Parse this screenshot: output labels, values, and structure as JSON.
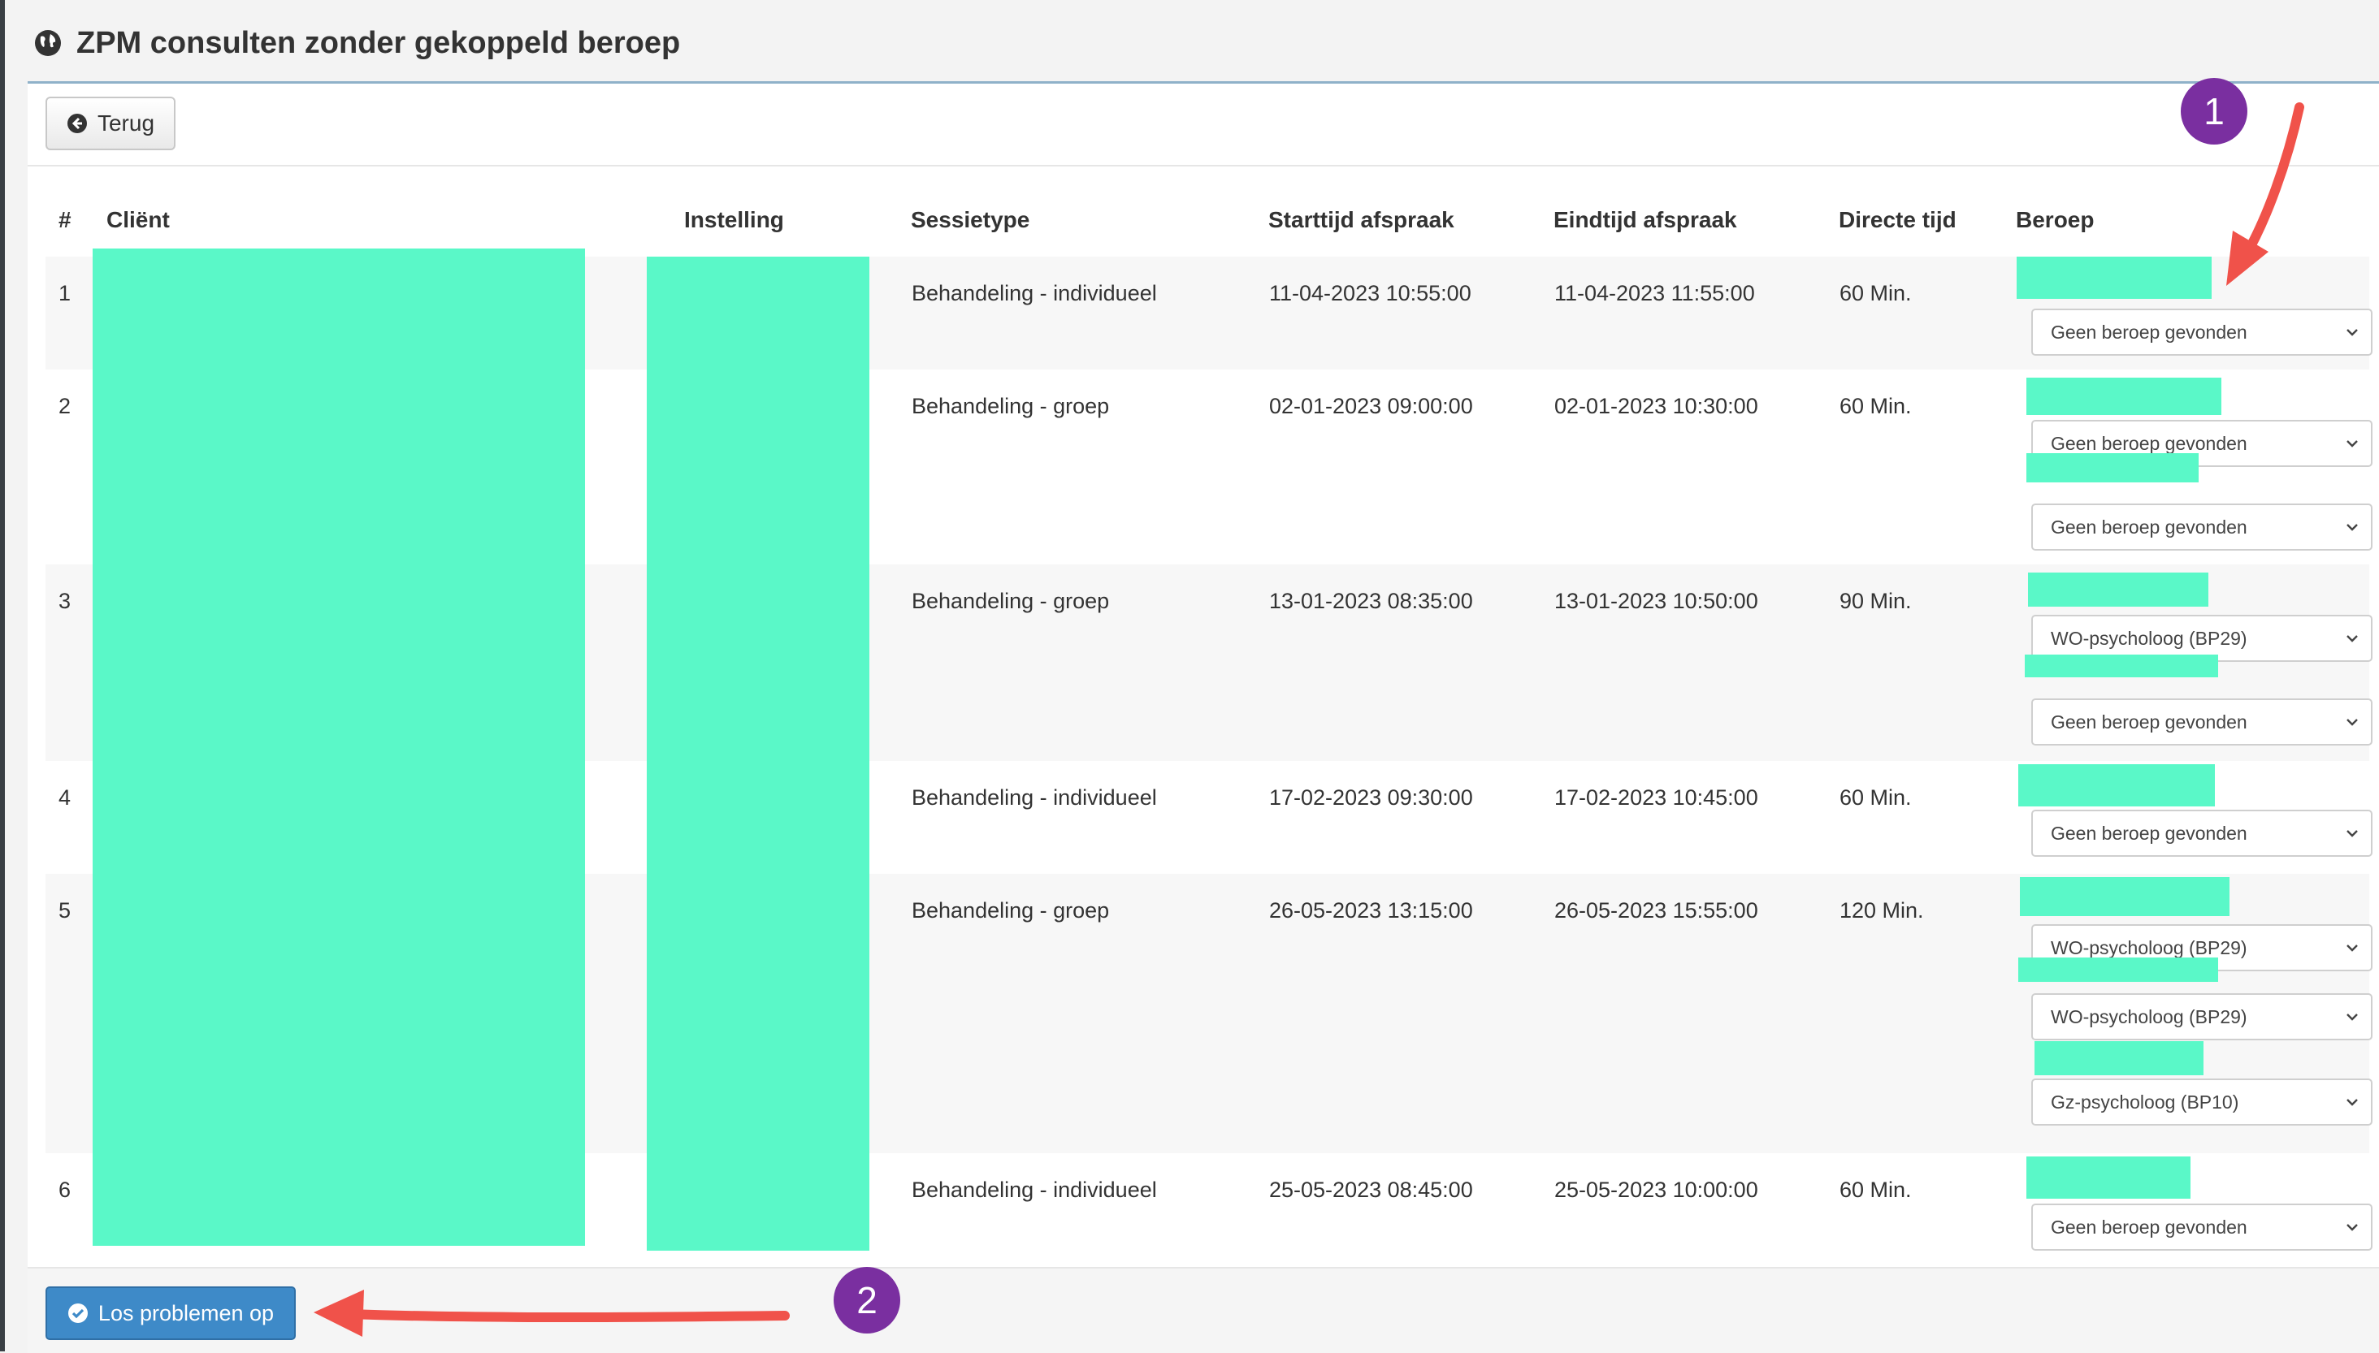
{
  "page_title": "ZPM consulten zonder gekoppeld beroep",
  "back_button": "Terug",
  "fix_button": "Los problemen op",
  "annotations": {
    "badge_1": "1",
    "badge_2": "2"
  },
  "table": {
    "headers": [
      "#",
      "Cliënt",
      "Instelling",
      "Sessietype",
      "Starttijd afspraak",
      "Eindtijd afspraak",
      "Directe tijd",
      "Beroep"
    ],
    "rows": [
      {
        "num": "1",
        "sessietype": "Behandeling - individueel",
        "start": "11-04-2023 10:55:00",
        "end": "11-04-2023 11:55:00",
        "direct": "60 Min.",
        "beroepen": [
          "Geen beroep gevonden"
        ]
      },
      {
        "num": "2",
        "sessietype": "Behandeling - groep",
        "start": "02-01-2023 09:00:00",
        "end": "02-01-2023 10:30:00",
        "direct": "60 Min.",
        "beroepen": [
          "Geen beroep gevonden",
          "Geen beroep gevonden"
        ]
      },
      {
        "num": "3",
        "sessietype": "Behandeling - groep",
        "start": "13-01-2023 08:35:00",
        "end": "13-01-2023 10:50:00",
        "direct": "90 Min.",
        "beroepen": [
          "WO-psycholoog (BP29)",
          "Geen beroep gevonden"
        ]
      },
      {
        "num": "4",
        "sessietype": "Behandeling - individueel",
        "start": "17-02-2023 09:30:00",
        "end": "17-02-2023 10:45:00",
        "direct": "60 Min.",
        "beroepen": [
          "Geen beroep gevonden"
        ]
      },
      {
        "num": "5",
        "sessietype": "Behandeling - groep",
        "start": "26-05-2023 13:15:00",
        "end": "26-05-2023 15:55:00",
        "direct": "120 Min.",
        "beroepen": [
          "WO-psycholoog (BP29)",
          "WO-psycholoog (BP29)",
          "Gz-psycholoog (BP10)"
        ]
      },
      {
        "num": "6",
        "sessietype": "Behandeling - individueel",
        "start": "25-05-2023 08:45:00",
        "end": "25-05-2023 10:00:00",
        "direct": "60 Min.",
        "beroepen": [
          "Geen beroep gevonden"
        ]
      }
    ]
  },
  "colors": {
    "accent": "#3e8ac8",
    "redaction": "#5af8c8",
    "badge": "#7a2fa0",
    "arrow": "#f0524a"
  },
  "icons": {
    "title": "globe-icon",
    "back": "circle-arrow-left-icon",
    "fix": "circle-check-icon",
    "select": "chevron-down-icon"
  }
}
